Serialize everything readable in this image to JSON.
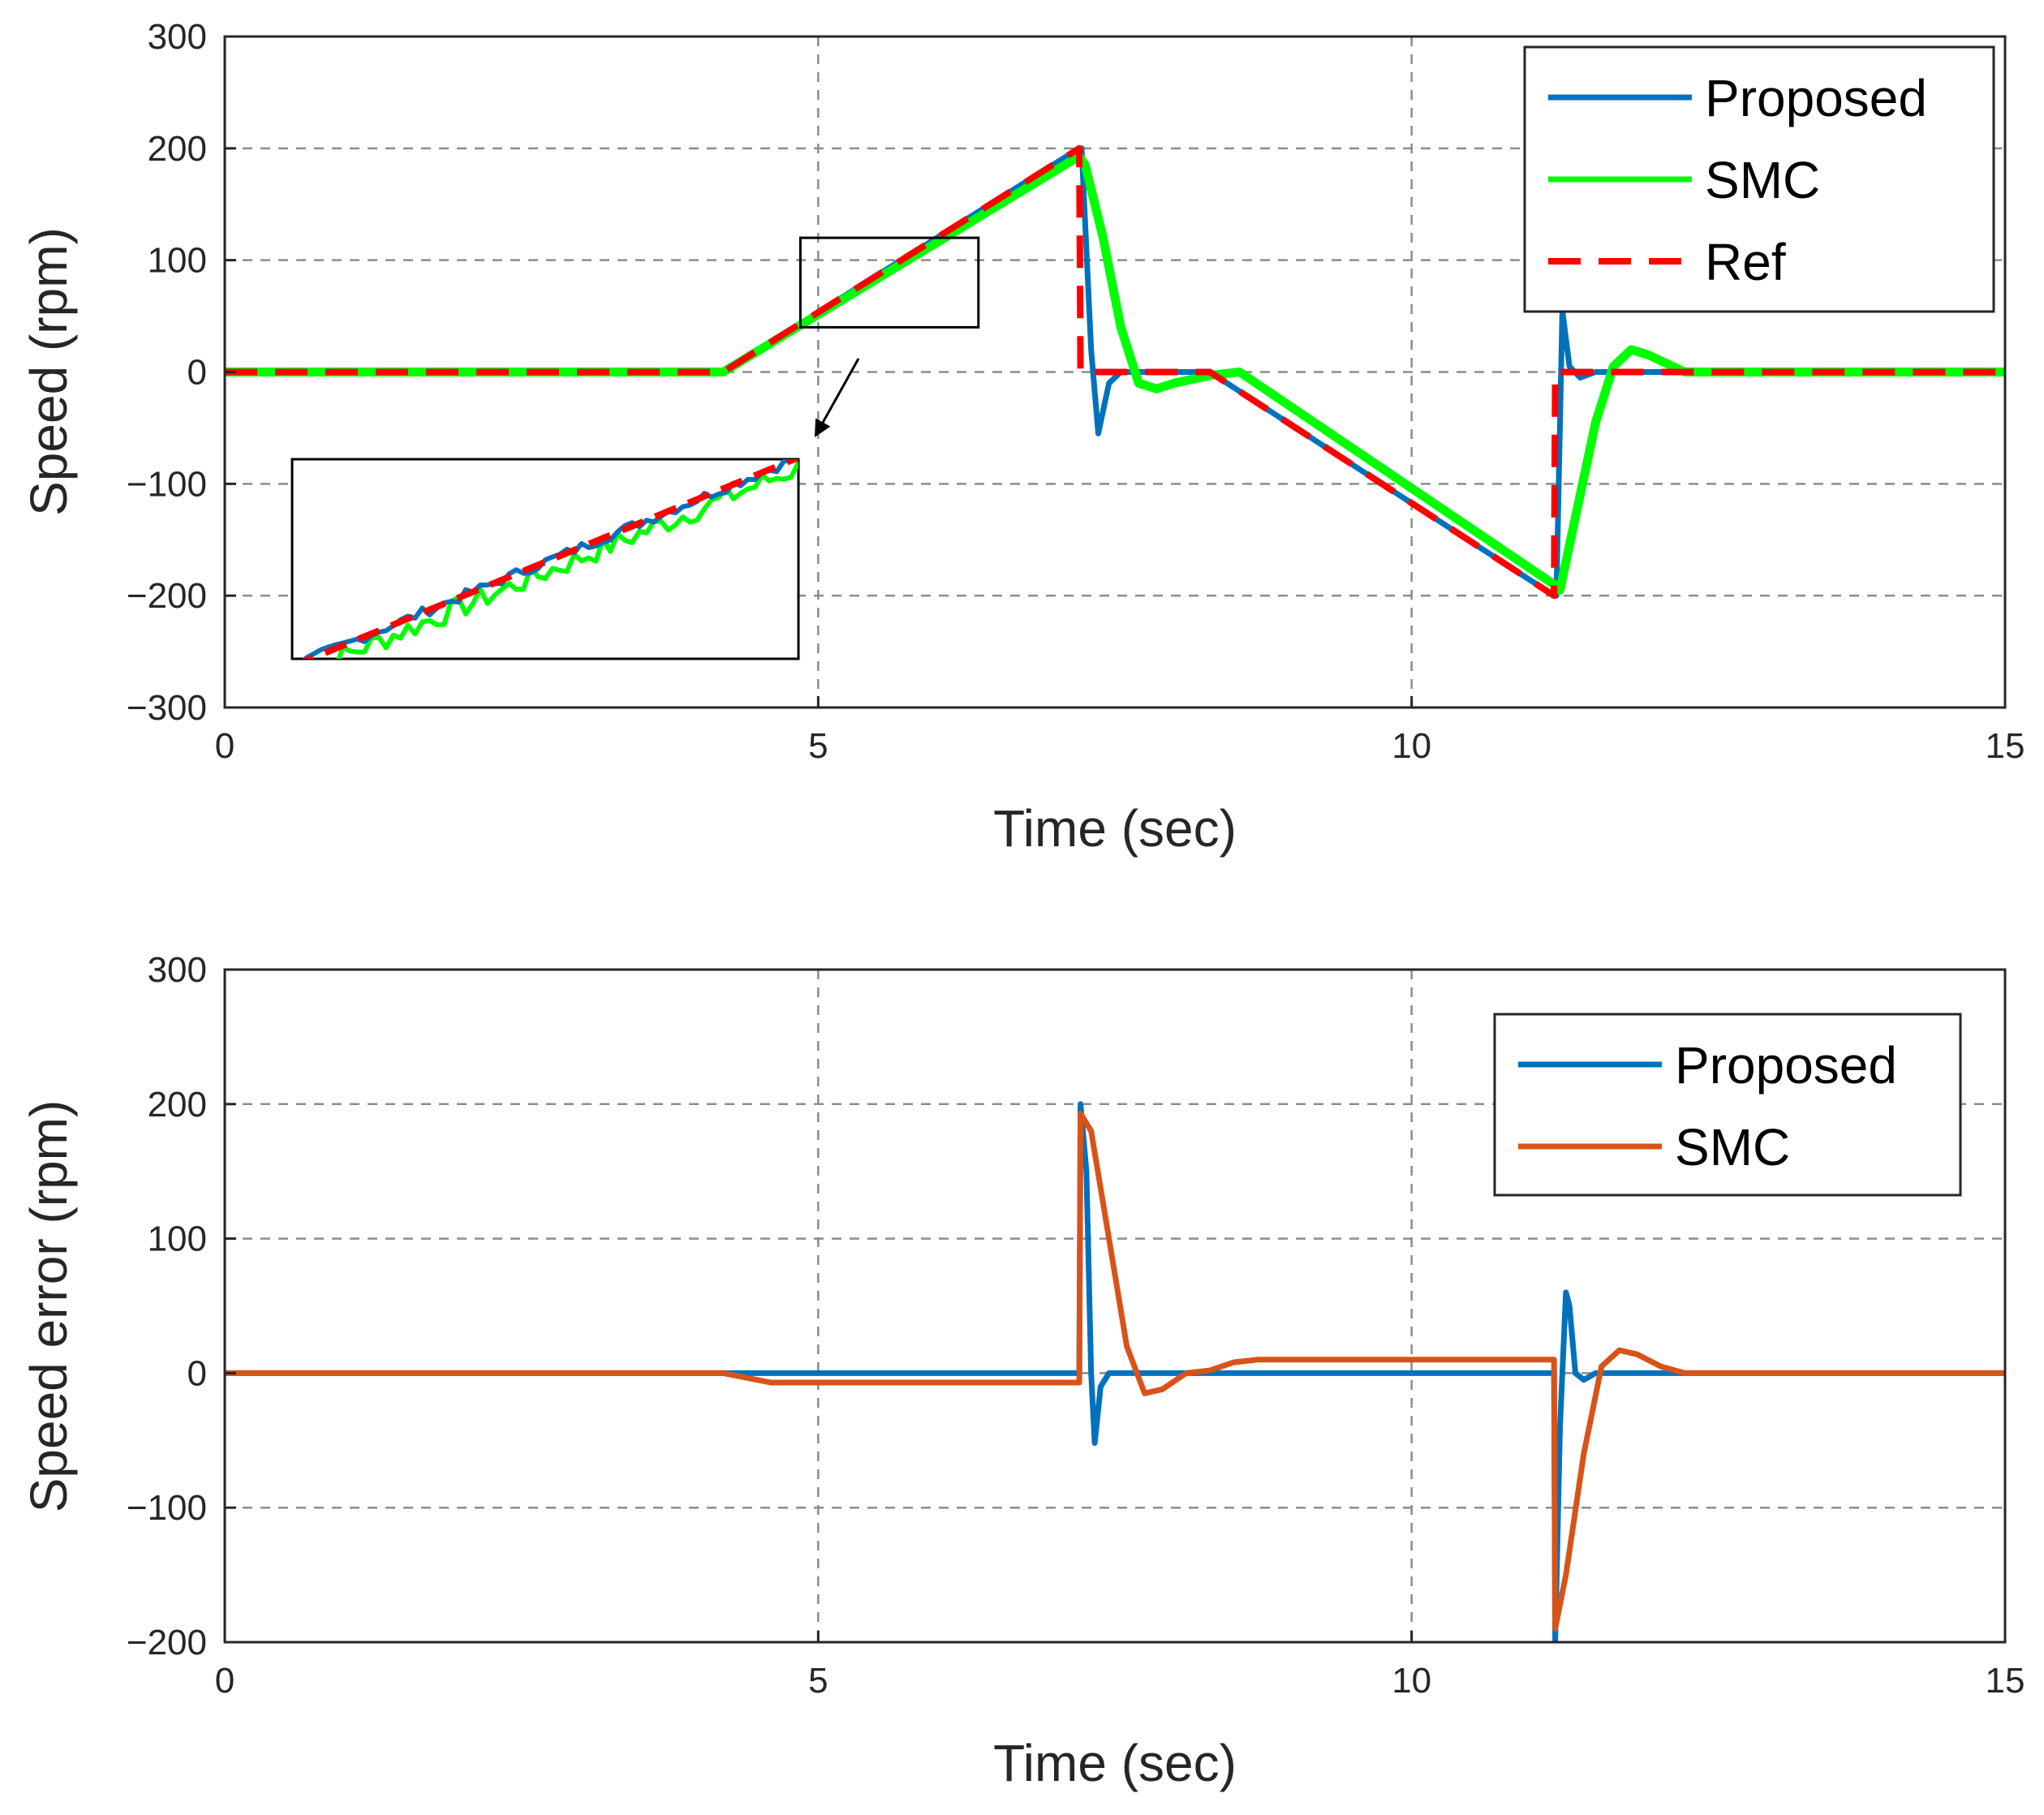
{
  "chart_data": [
    {
      "type": "line",
      "title": "",
      "xlabel": "Time (sec)",
      "ylabel": "Speed (rpm)",
      "xlim": [
        0,
        15
      ],
      "ylim": [
        -300,
        300
      ],
      "xticks": [
        0,
        5,
        10,
        15
      ],
      "xtick_labels": [
        "0",
        "5",
        "10",
        "15"
      ],
      "yticks": [
        -300,
        -200,
        -100,
        0,
        100,
        200,
        300
      ],
      "ytick_labels": [
        "−300",
        "−200",
        "−100",
        "0",
        "100",
        "200",
        "300"
      ],
      "grid": true,
      "legend_position": "top-right",
      "series": [
        {
          "name": "Proposed",
          "color": "#0072BD",
          "style": "solid",
          "x": [
            0,
            4.2,
            7.2,
            7.22,
            7.3,
            7.36,
            7.45,
            7.55,
            7.7,
            8.3,
            11.2,
            11.22,
            11.27,
            11.33,
            11.42,
            11.55,
            15
          ],
          "y": [
            0,
            0,
            200,
            200,
            20,
            -55,
            -10,
            0,
            0,
            0,
            -200,
            -200,
            55,
            5,
            -5,
            0,
            0
          ]
        },
        {
          "name": "SMC",
          "color": "#00FF00",
          "style": "solid",
          "x": [
            0,
            4.2,
            7.2,
            7.25,
            7.4,
            7.55,
            7.7,
            7.85,
            8.0,
            8.3,
            8.55,
            11.2,
            11.25,
            11.4,
            11.55,
            11.7,
            11.85,
            12.0,
            12.3,
            15
          ],
          "y": [
            0,
            0,
            193,
            185,
            120,
            40,
            -10,
            -15,
            -10,
            -3,
            0,
            -190,
            -195,
            -120,
            -45,
            5,
            20,
            15,
            0,
            0
          ]
        },
        {
          "name": "Ref",
          "color": "#FF0000",
          "style": "dashed",
          "x": [
            0,
            4.2,
            7.2,
            7.21,
            8.3,
            11.2,
            11.21,
            15
          ],
          "y": [
            0,
            0,
            200,
            0,
            0,
            -200,
            0,
            0
          ]
        }
      ],
      "inset": {
        "zoom_region": {
          "x": [
            4.85,
            6.35
          ],
          "y": [
            40,
            120
          ]
        },
        "note": "magnified view of the ramp between 4.85 s and 6.35 s"
      }
    },
    {
      "type": "line",
      "title": "",
      "xlabel": "Time (sec)",
      "ylabel": "Speed error (rpm)",
      "xlim": [
        0,
        15
      ],
      "ylim": [
        -200,
        300
      ],
      "xticks": [
        0,
        5,
        10,
        15
      ],
      "xtick_labels": [
        "0",
        "5",
        "10",
        "15"
      ],
      "yticks": [
        -200,
        -100,
        0,
        100,
        200,
        300
      ],
      "ytick_labels": [
        "−200",
        "−100",
        "0",
        "100",
        "200",
        "300"
      ],
      "grid": true,
      "legend_position": "top-right",
      "series": [
        {
          "name": "Proposed",
          "color": "#0072BD",
          "style": "solid",
          "x": [
            0,
            7.2,
            7.21,
            7.26,
            7.3,
            7.33,
            7.38,
            7.45,
            7.55,
            11.2,
            11.21,
            11.25,
            11.3,
            11.33,
            11.38,
            11.45,
            11.55,
            15
          ],
          "y": [
            0,
            0,
            200,
            150,
            0,
            -52,
            -10,
            0,
            0,
            0,
            -200,
            -40,
            60,
            50,
            0,
            -5,
            0,
            0
          ]
        },
        {
          "name": "SMC",
          "color": "#D95319",
          "style": "solid",
          "x": [
            0,
            4.2,
            4.6,
            7.2,
            7.21,
            7.3,
            7.45,
            7.6,
            7.75,
            7.9,
            8.1,
            8.3,
            8.5,
            8.7,
            11.2,
            11.21,
            11.3,
            11.45,
            11.6,
            11.75,
            11.9,
            12.1,
            12.3,
            15
          ],
          "y": [
            0,
            0,
            -7,
            -7,
            193,
            180,
            100,
            20,
            -15,
            -12,
            0,
            2,
            8,
            10,
            10,
            -190,
            -150,
            -60,
            5,
            17,
            14,
            5,
            0,
            0
          ]
        }
      ]
    }
  ]
}
